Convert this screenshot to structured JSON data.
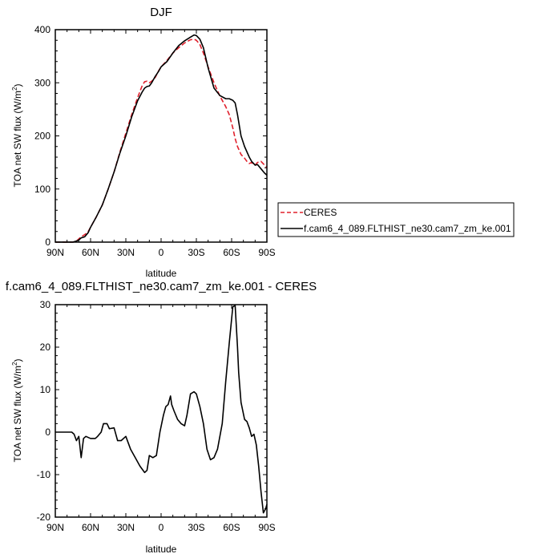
{
  "chart_data": [
    {
      "type": "line",
      "title": "DJF",
      "xlabel": "latitude",
      "ylabel": "TOA net SW flux (W/m",
      "ylabel_sup": "2",
      "ylabel_close": ")",
      "xlim": [
        90,
        -90
      ],
      "ylim": [
        0,
        400
      ],
      "xticks": [
        {
          "v": 90,
          "label": "90N"
        },
        {
          "v": 60,
          "label": "60N"
        },
        {
          "v": 30,
          "label": "30N"
        },
        {
          "v": 0,
          "label": "0"
        },
        {
          "v": -30,
          "label": "30S"
        },
        {
          "v": -60,
          "label": "60S"
        },
        {
          "v": -90,
          "label": "90S"
        }
      ],
      "yticks": [
        0,
        100,
        200,
        300,
        400
      ],
      "legend": {
        "placement": "right-outside",
        "entries": [
          "CERES",
          "f.cam6_4_089.FLTHIST_ne30.cam7_zm_ke.001"
        ]
      },
      "series": [
        {
          "name": "CERES",
          "color": "#e0202c",
          "dash": "dashed",
          "x": [
            90,
            85,
            80,
            75,
            72,
            70,
            68,
            65,
            62,
            60,
            55,
            50,
            45,
            40,
            35,
            30,
            25,
            20,
            16,
            14,
            12,
            10,
            8,
            5,
            2,
            0,
            -5,
            -10,
            -15,
            -20,
            -25,
            -28,
            -30,
            -33,
            -36,
            -40,
            -45,
            -50,
            -55,
            -58,
            -61,
            -63,
            -65,
            -68,
            -71,
            -73,
            -75,
            -77,
            -80,
            -82,
            -85,
            -88,
            -90
          ],
          "y": [
            0,
            0,
            0,
            0,
            2,
            6,
            10,
            14,
            20,
            28,
            48,
            70,
            100,
            132,
            170,
            205,
            240,
            272,
            295,
            302,
            303,
            300,
            303,
            310,
            323,
            330,
            342,
            356,
            366,
            375,
            381,
            382,
            380,
            372,
            356,
            330,
            300,
            275,
            255,
            240,
            215,
            195,
            180,
            165,
            158,
            152,
            148,
            150,
            145,
            150,
            152,
            145,
            140
          ]
        },
        {
          "name": "f.cam6_4_089.FLTHIST_ne30.cam7_zm_ke.001",
          "color": "#000000",
          "dash": "solid",
          "x": [
            90,
            85,
            80,
            75,
            72,
            70,
            68,
            65,
            62,
            60,
            55,
            50,
            45,
            40,
            35,
            30,
            25,
            20,
            16,
            14,
            12,
            10,
            8,
            5,
            2,
            0,
            -5,
            -10,
            -15,
            -20,
            -25,
            -28,
            -30,
            -33,
            -36,
            -40,
            -45,
            -50,
            -55,
            -58,
            -61,
            -63,
            -65,
            -68,
            -71,
            -73,
            -75,
            -77,
            -80,
            -82,
            -85,
            -88,
            -90
          ],
          "y": [
            0,
            0,
            0,
            0,
            2,
            4,
            8,
            10,
            18,
            28,
            48,
            70,
            100,
            132,
            168,
            200,
            236,
            266,
            283,
            290,
            293,
            294,
            300,
            312,
            322,
            330,
            340,
            356,
            370,
            379,
            386,
            390,
            389,
            382,
            366,
            328,
            290,
            276,
            270,
            270,
            267,
            262,
            240,
            200,
            180,
            170,
            160,
            152,
            145,
            146,
            138,
            130,
            126
          ]
        }
      ]
    },
    {
      "type": "line",
      "title": "f.cam6_4_089.FLTHIST_ne30.cam7_zm_ke.001 - CERES",
      "xlabel": "latitude",
      "ylabel": "TOA net SW flux (W/m",
      "ylabel_sup": "2",
      "ylabel_close": ")",
      "xlim": [
        90,
        -90
      ],
      "ylim": [
        -20,
        30
      ],
      "xticks": [
        {
          "v": 90,
          "label": "90N"
        },
        {
          "v": 60,
          "label": "60N"
        },
        {
          "v": 30,
          "label": "30N"
        },
        {
          "v": 0,
          "label": "0"
        },
        {
          "v": -30,
          "label": "30S"
        },
        {
          "v": -60,
          "label": "60S"
        },
        {
          "v": -90,
          "label": "90S"
        }
      ],
      "yticks": [
        -20,
        -10,
        0,
        10,
        20,
        30
      ],
      "series": [
        {
          "name": "f.cam6_4_089.FLTHIST_ne30.cam7_zm_ke.001 - CERES",
          "color": "#000000",
          "dash": "solid",
          "x": [
            90,
            85,
            80,
            76,
            74,
            72,
            70,
            68,
            66,
            64,
            60,
            56,
            54,
            51,
            49,
            46,
            44,
            40,
            37,
            34,
            30,
            26,
            22,
            18,
            14,
            12,
            10,
            7,
            4,
            1,
            -2,
            -4,
            -6,
            -8,
            -9,
            -11,
            -14,
            -17,
            -20,
            -22,
            -25,
            -28,
            -30,
            -33,
            -36,
            -39,
            -42,
            -45,
            -48,
            -52,
            -55,
            -58,
            -61,
            -63,
            -65,
            -66,
            -68,
            -71,
            -73,
            -75,
            -77,
            -79,
            -81,
            -83,
            -85,
            -87,
            -89,
            -90
          ],
          "y": [
            0,
            0,
            0,
            0,
            -0.5,
            -2,
            -1,
            -6,
            -1.5,
            -1,
            -1.5,
            -1.5,
            -1,
            0,
            2,
            2,
            0.8,
            1,
            -2,
            -2,
            -1,
            -4,
            -6,
            -8,
            -9.5,
            -9,
            -5.5,
            -6,
            -5.5,
            0,
            4,
            6,
            6.5,
            8.5,
            6.5,
            5,
            3,
            2,
            1.5,
            4,
            9,
            9.5,
            9,
            6,
            2,
            -4,
            -6.5,
            -6,
            -4,
            2,
            12,
            21,
            29.5,
            29.8,
            20,
            14,
            7,
            3,
            2.5,
            1,
            -1,
            -0.5,
            -3,
            -8,
            -14,
            -19,
            -18,
            -17
          ]
        }
      ]
    }
  ]
}
